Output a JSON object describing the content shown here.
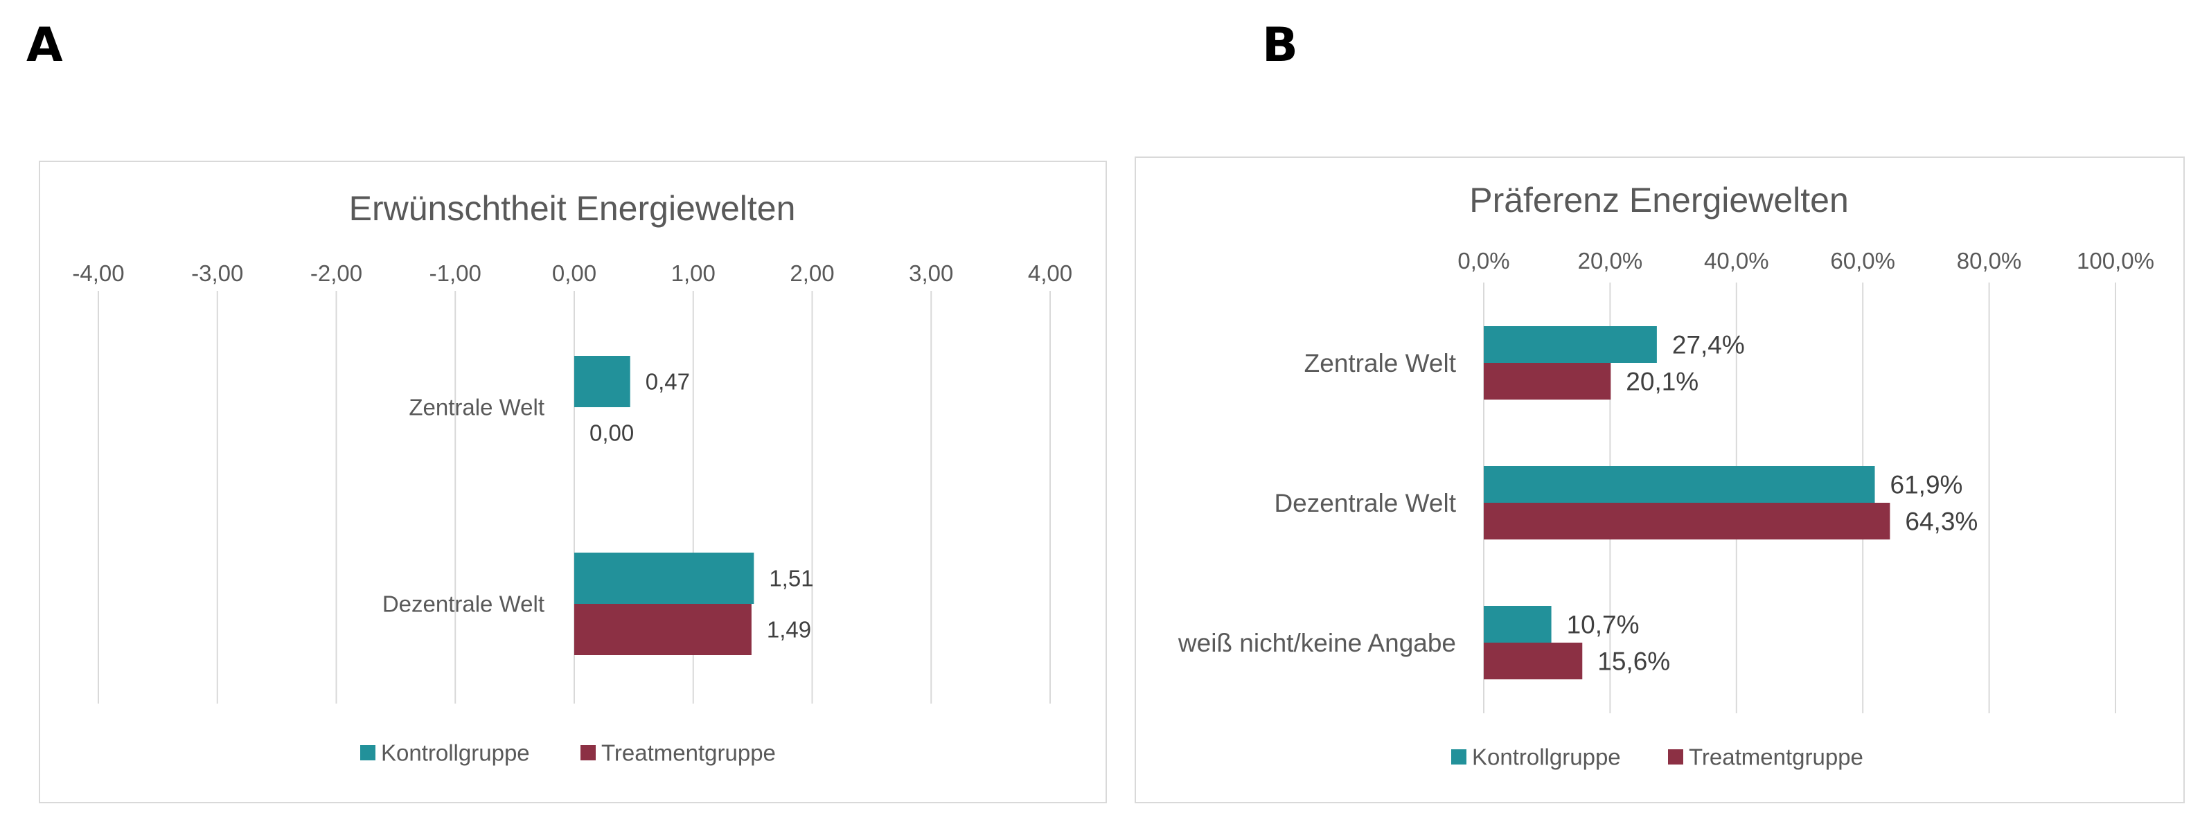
{
  "panels": {
    "a": "A",
    "b": "B"
  },
  "colors": {
    "kontroll": "#22919a",
    "treatment": "#8c3044",
    "grid": "#d9d9d9",
    "text": "#595959",
    "label": "#404040"
  },
  "chart_data": [
    {
      "type": "bar",
      "orientation": "horizontal",
      "title": "Erwünschtheit Energiewelten",
      "categories": [
        "Zentrale Welt",
        "Dezentrale Welt"
      ],
      "series": [
        {
          "name": "Kontrollgruppe",
          "values": [
            0.47,
            1.51
          ],
          "labels": [
            "0,47",
            "1,51"
          ]
        },
        {
          "name": "Treatmentgruppe",
          "values": [
            0.0,
            1.49
          ],
          "labels": [
            "0,00",
            "1,49"
          ]
        }
      ],
      "xlim": [
        -4,
        4
      ],
      "xticks": [
        -4,
        -3,
        -2,
        -1,
        0,
        1,
        2,
        3,
        4
      ],
      "xtick_labels": [
        "-4,00",
        "-3,00",
        "-2,00",
        "-1,00",
        "0,00",
        "1,00",
        "2,00",
        "3,00",
        "4,00"
      ],
      "axis_position": "top",
      "grid": true,
      "legend": "bottom"
    },
    {
      "type": "bar",
      "orientation": "horizontal",
      "title": "Präferenz Energiewelten",
      "categories": [
        "Zentrale Welt",
        "Dezentrale Welt",
        "weiß nicht/keine Angabe"
      ],
      "series": [
        {
          "name": "Kontrollgruppe",
          "values": [
            27.4,
            61.9,
            10.7
          ],
          "labels": [
            "27,4%",
            "61,9%",
            "10,7%"
          ]
        },
        {
          "name": "Treatmentgruppe",
          "values": [
            20.1,
            64.3,
            15.6
          ],
          "labels": [
            "20,1%",
            "64,3%",
            "15,6%"
          ]
        }
      ],
      "xlim": [
        0,
        100
      ],
      "xticks": [
        0,
        20,
        40,
        60,
        80,
        100
      ],
      "xtick_labels": [
        "0,0%",
        "20,0%",
        "40,0%",
        "60,0%",
        "80,0%",
        "100,0%"
      ],
      "axis_position": "top",
      "grid": true,
      "legend": "bottom"
    }
  ]
}
